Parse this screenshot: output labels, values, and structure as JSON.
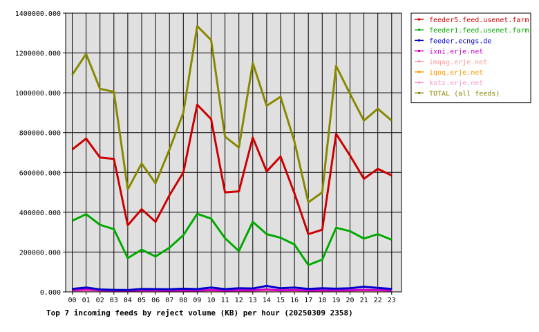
{
  "chart_data": {
    "type": "line",
    "title": "Top 7 incoming feeds by reject volume (KB) per hour (20250309 2358)",
    "categories": [
      "00",
      "01",
      "02",
      "03",
      "04",
      "05",
      "06",
      "07",
      "08",
      "09",
      "10",
      "11",
      "12",
      "13",
      "14",
      "15",
      "16",
      "17",
      "18",
      "19",
      "20",
      "21",
      "22",
      "23"
    ],
    "ylim": [
      0,
      1400000
    ],
    "yticks": [
      0,
      200000,
      400000,
      600000,
      800000,
      1000000,
      1200000,
      1400000
    ],
    "ytick_labels": [
      "0.000",
      "200000.000",
      "400000.000",
      "600000.000",
      "800000.000",
      "1000000.000",
      "1200000.000",
      "1400000.000"
    ],
    "grid": true,
    "legend_position": "right",
    "series": [
      {
        "name": "feeder5.feed.usenet.farm",
        "color": "#cc0000",
        "values": [
          715000,
          770000,
          675000,
          668000,
          335000,
          415000,
          352000,
          485000,
          600000,
          940000,
          868000,
          500000,
          505000,
          775000,
          605000,
          680000,
          495000,
          290000,
          312000,
          793000,
          685000,
          568000,
          618000,
          585000
        ]
      },
      {
        "name": "feeder1.feed.usenet.farm",
        "color": "#00aa00",
        "values": [
          357000,
          390000,
          337000,
          315000,
          170000,
          212000,
          178000,
          222000,
          285000,
          392000,
          368000,
          270000,
          205000,
          352000,
          290000,
          272000,
          238000,
          135000,
          162000,
          322000,
          305000,
          268000,
          290000,
          262000
        ]
      },
      {
        "name": "feeder.ecngs.de",
        "color": "#0000cc",
        "values": [
          15000,
          22000,
          12000,
          10000,
          9000,
          15000,
          14000,
          13000,
          16000,
          14000,
          22000,
          14000,
          18000,
          17000,
          30000,
          18000,
          22000,
          15000,
          18000,
          16000,
          18000,
          26000,
          20000,
          15000
        ]
      },
      {
        "name": "ixni.erje.net",
        "color": "#cc00cc",
        "values": [
          8000,
          12000,
          8000,
          7000,
          6000,
          8000,
          8000,
          7000,
          8000,
          7000,
          9000,
          7000,
          8000,
          8000,
          12000,
          8000,
          9000,
          7000,
          8000,
          8000,
          8000,
          10000,
          9000,
          7000
        ]
      },
      {
        "name": "imqag.erje.net",
        "color": "#ff9999",
        "values": [
          5000,
          6000,
          5000,
          5000,
          4000,
          5000,
          5000,
          5000,
          5000,
          5000,
          5000,
          4000,
          5000,
          5000,
          6000,
          5000,
          5000,
          4000,
          5000,
          5000,
          5000,
          5000,
          5000,
          4000
        ]
      },
      {
        "name": "iqoq.erje.net",
        "color": "#ff9900",
        "values": [
          3000,
          4000,
          3000,
          3000,
          3000,
          3000,
          3000,
          3000,
          3000,
          3000,
          3000,
          3000,
          3000,
          3000,
          4000,
          3000,
          3000,
          3000,
          3000,
          3000,
          3000,
          3000,
          3000,
          3000
        ]
      },
      {
        "name": "kotz.erje.net",
        "color": "#ff99cc",
        "values": [
          6000,
          7000,
          6000,
          8000,
          5000,
          6000,
          6000,
          5000,
          6000,
          6000,
          6000,
          5000,
          6000,
          6000,
          7000,
          6000,
          6000,
          5000,
          6000,
          6000,
          6000,
          6000,
          6000,
          5000
        ]
      },
      {
        "name": "TOTAL (all feeds)",
        "color": "#888800",
        "values": [
          1090000,
          1195000,
          1020000,
          1005000,
          515000,
          645000,
          545000,
          715000,
          900000,
          1335000,
          1265000,
          780000,
          725000,
          1150000,
          935000,
          980000,
          755000,
          450000,
          500000,
          1135000,
          995000,
          860000,
          920000,
          860000
        ]
      }
    ]
  }
}
